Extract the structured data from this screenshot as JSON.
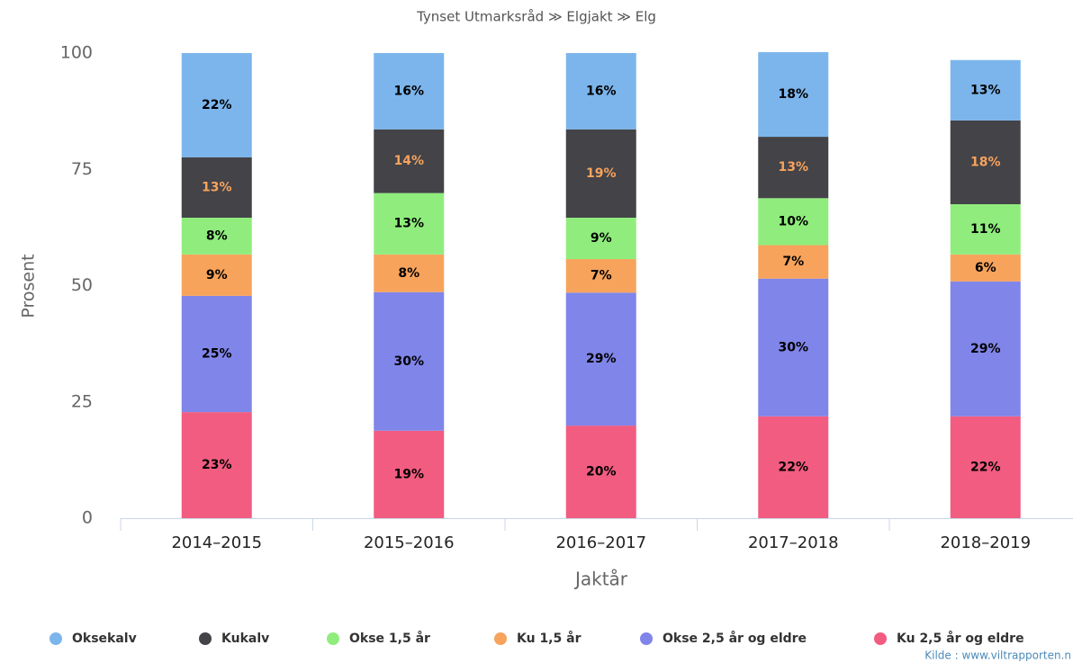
{
  "chart_data": {
    "type": "stacked_bar",
    "title": "Tynset Utmarksråd ≫ Elgjakt ≫ Elg",
    "x_label": "Jaktår",
    "y_label": "Prosent",
    "credits": "Kilde : www.viltrapporten.n",
    "categories": [
      "2014–2015",
      "2015–2016",
      "2016–2017",
      "2017–2018",
      "2018–2019"
    ],
    "series": [
      {
        "name": "Oksekalv",
        "color": "#7cb5ec",
        "values": [
          22.4,
          16.4,
          16.4,
          18.2,
          13.0
        ],
        "value_labels": [
          "22%",
          "16%",
          "16%",
          "18%",
          "13%"
        ]
      },
      {
        "name": "Kukalv",
        "color": "#434348",
        "values": [
          13.0,
          13.7,
          19.0,
          13.2,
          18.0
        ],
        "value_labels": [
          "13%",
          "14%",
          "19%",
          "13%",
          "18%"
        ]
      },
      {
        "name": "Okse 1,5 år",
        "color": "#90ed7d",
        "values": [
          7.9,
          13.2,
          8.9,
          10.1,
          10.8
        ],
        "value_labels": [
          "8%",
          "13%",
          "9%",
          "10%",
          "11%"
        ]
      },
      {
        "name": "Ku 1,5 år",
        "color": "#f7a35c",
        "values": [
          8.9,
          8.1,
          7.2,
          7.2,
          5.8
        ],
        "value_labels": [
          "9%",
          "8%",
          "7%",
          "7%",
          "6%"
        ]
      },
      {
        "name": "Okse 2,5 år og eldre",
        "color": "#8085e9",
        "values": [
          25.0,
          29.8,
          28.6,
          29.6,
          29.0
        ],
        "value_labels": [
          "25%",
          "30%",
          "29%",
          "30%",
          "29%"
        ]
      },
      {
        "name": "Ku 2,5 år og eldre",
        "color": "#f15c80",
        "values": [
          22.8,
          18.8,
          19.9,
          21.9,
          21.9
        ],
        "value_labels": [
          "23%",
          "19%",
          "20%",
          "22%",
          "22%"
        ]
      }
    ],
    "ylim": [
      0,
      100
    ],
    "yticks": [
      0,
      25,
      50,
      75,
      100
    ],
    "grid": false,
    "legend": "bottom"
  }
}
